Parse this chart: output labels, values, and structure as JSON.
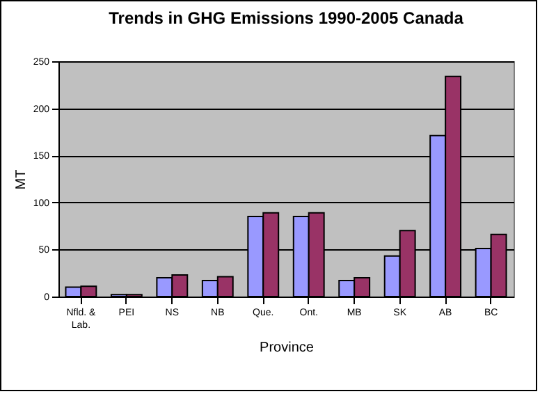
{
  "chart_data": {
    "type": "bar",
    "title": "Trends in GHG Emissions 1990-2005 Canada",
    "xlabel": "Province",
    "ylabel": "MT",
    "categories": [
      "Nfld. & Lab.",
      "PEI",
      "NS",
      "NB",
      "Que.",
      "Ont.",
      "MB",
      "SK",
      "AB",
      "BC"
    ],
    "series": [
      {
        "color": "#9999ff",
        "values": [
          10,
          2,
          20,
          17,
          85,
          85,
          17,
          43,
          171,
          51
        ]
      },
      {
        "color": "#993366",
        "values": [
          11,
          2,
          23,
          21,
          89,
          89,
          20,
          70,
          234,
          66
        ]
      }
    ],
    "ylim": [
      0,
      250
    ],
    "yticks": [
      0,
      50,
      100,
      150,
      200,
      250
    ],
    "grid": "y",
    "legend": false
  }
}
